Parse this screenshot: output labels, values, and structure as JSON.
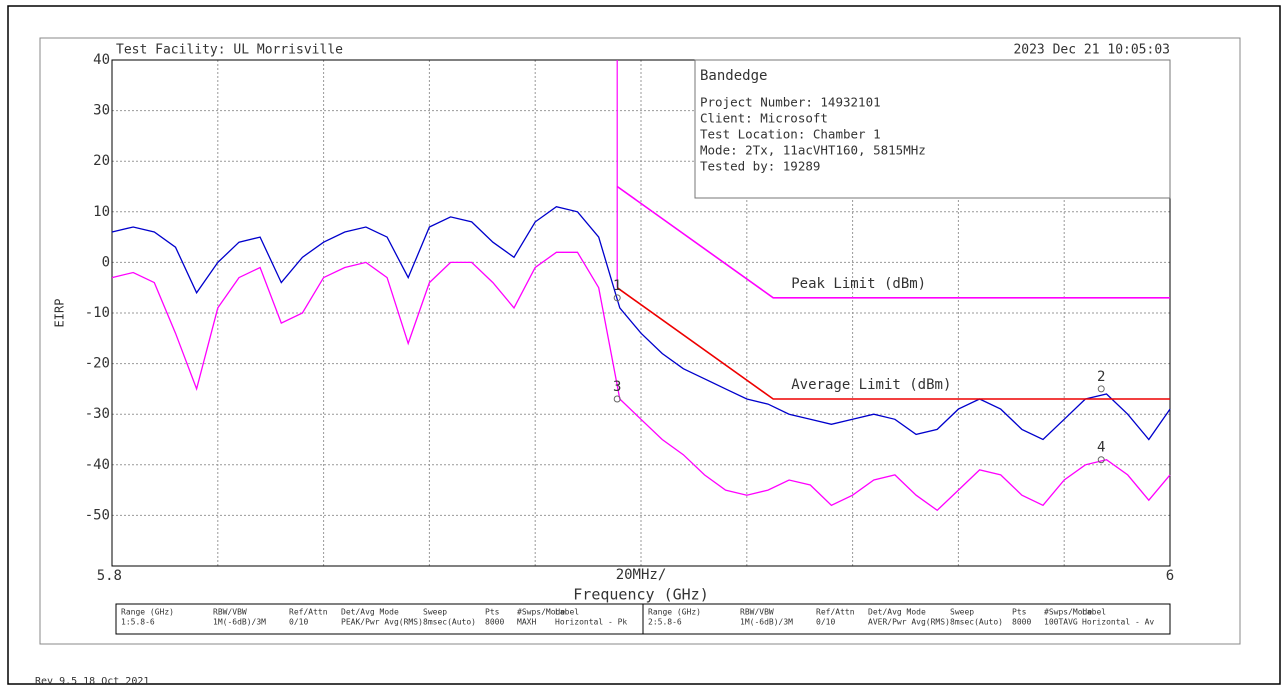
{
  "chart_data": {
    "type": "line",
    "title": "Test Facility:  UL Morrisville",
    "timestamp": "2023 Dec 21    10:05:03",
    "ylabel": "EIRP",
    "xlabel": "Frequency (GHz)",
    "x_division_label": "20MHz/",
    "xlim": [
      5.8,
      6
    ],
    "ylim": [
      -60,
      40
    ],
    "xticks": [
      5.8,
      6
    ],
    "xgrid": [
      5.82,
      5.84,
      5.86,
      5.88,
      5.9,
      5.92,
      5.94,
      5.96,
      5.98
    ],
    "yticks": [
      40,
      30,
      20,
      10,
      0,
      -10,
      -20,
      -30,
      -40,
      -50
    ],
    "grid": true,
    "x": [
      5.8,
      5.804,
      5.808,
      5.812,
      5.816,
      5.82,
      5.824,
      5.828,
      5.832,
      5.836,
      5.84,
      5.844,
      5.848,
      5.852,
      5.856,
      5.86,
      5.864,
      5.868,
      5.872,
      5.876,
      5.88,
      5.884,
      5.888,
      5.892,
      5.896,
      5.9,
      5.904,
      5.908,
      5.912,
      5.916,
      5.92,
      5.924,
      5.928,
      5.932,
      5.936,
      5.94,
      5.944,
      5.948,
      5.952,
      5.956,
      5.96,
      5.964,
      5.968,
      5.972,
      5.976,
      5.98,
      5.984,
      5.988,
      5.992,
      5.996,
      6
    ],
    "series": [
      {
        "name": "Horizontal - Pk",
        "color": "#0000cc",
        "values": [
          6,
          7,
          6,
          3,
          -6,
          0,
          4,
          5,
          -4,
          1,
          4,
          6,
          7,
          5,
          -3,
          7,
          9,
          8,
          4,
          1,
          8,
          11,
          10,
          5,
          -9,
          -14,
          -18,
          -21,
          -23,
          -25,
          -27,
          -28,
          -30,
          -31,
          -32,
          -31,
          -30,
          -31,
          -34,
          -33,
          -29,
          -27,
          -29,
          -33,
          -35,
          -31,
          -27,
          -26,
          -30,
          -35,
          -29
        ]
      },
      {
        "name": "Horizontal - Av",
        "color": "#ff00ff",
        "values": [
          -3,
          -2,
          -4,
          -14,
          -25,
          -9,
          -3,
          -1,
          -12,
          -10,
          -3,
          -1,
          0,
          -3,
          -16,
          -4,
          0,
          0,
          -4,
          -9,
          -1,
          2,
          2,
          -5,
          -27,
          -31,
          -35,
          -38,
          -42,
          -45,
          -46,
          -45,
          -43,
          -44,
          -48,
          -46,
          -43,
          -42,
          -46,
          -49,
          -45,
          -41,
          -42,
          -46,
          -48,
          -43,
          -40,
          -39,
          -42,
          -47,
          -42
        ]
      }
    ],
    "band_edge": {
      "x": 5.8955,
      "values": [
        40,
        -5
      ],
      "color": "#ff00ff"
    },
    "limits": [
      {
        "name": "Peak Limit (dBm)",
        "color": "#ff00ff",
        "x": [
          5.8955,
          5.925,
          6
        ],
        "values": [
          15,
          -7,
          -7
        ]
      },
      {
        "name": "Average Limit (dBm)",
        "color": "#ee0000",
        "x": [
          5.8955,
          5.925,
          6
        ],
        "values": [
          -5,
          -27,
          -27
        ]
      }
    ],
    "markers": [
      {
        "label": "1",
        "x": 5.8955,
        "y": -7
      },
      {
        "label": "2",
        "x": 5.987,
        "y": -25
      },
      {
        "label": "3",
        "x": 5.8955,
        "y": -27
      },
      {
        "label": "4",
        "x": 5.987,
        "y": -39
      }
    ]
  },
  "info_box": {
    "title": "Bandedge",
    "lines": [
      "Project Number: 14932101",
      "Client: Microsoft",
      "Test Location: Chamber 1",
      "Mode: 2Tx, 11acVHT160, 5815MHz",
      "Tested by: 19289"
    ]
  },
  "settings_table": {
    "headers": [
      "Range (GHz)",
      "RBW/VBW",
      "Ref/Attn",
      "Det/Avg Mode",
      "Sweep",
      "Pts",
      "#Swps/Mode",
      "Label"
    ],
    "rows": [
      [
        "1:5.8-6",
        "1M(-6dB)/3M",
        "0/10",
        "PEAK/Pwr Avg(RMS)",
        "8msec(Auto)",
        "8000",
        "MAXH",
        "Horizontal - Pk"
      ],
      [
        "2:5.8-6",
        "1M(-6dB)/3M",
        "0/10",
        "AVER/Pwr Avg(RMS)",
        "8msec(Auto)",
        "8000",
        "100TAVG",
        "Horizontal - Av"
      ]
    ]
  },
  "footer": "Rev 9.5 18 Oct 2021"
}
